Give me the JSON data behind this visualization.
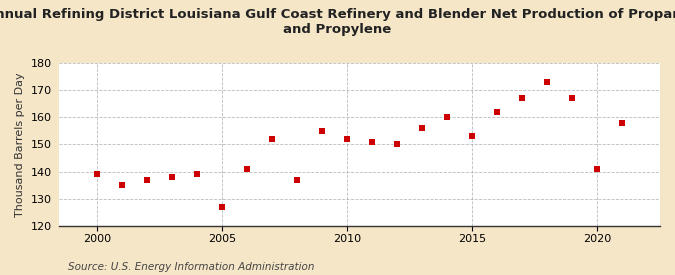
{
  "title": "Annual Refining District Louisiana Gulf Coast Refinery and Blender Net Production of Propane\nand Propylene",
  "ylabel": "Thousand Barrels per Day",
  "source": "Source: U.S. Energy Information Administration",
  "years": [
    2000,
    2001,
    2002,
    2003,
    2004,
    2005,
    2006,
    2007,
    2008,
    2009,
    2010,
    2011,
    2012,
    2013,
    2014,
    2015,
    2016,
    2017,
    2018,
    2019,
    2020,
    2021
  ],
  "values": [
    139,
    135,
    137,
    138,
    139,
    127,
    141,
    152,
    137,
    155,
    152,
    151,
    150,
    156,
    160,
    153,
    162,
    167,
    173,
    167,
    141,
    158
  ],
  "ylim": [
    120,
    180
  ],
  "yticks": [
    120,
    130,
    140,
    150,
    160,
    170,
    180
  ],
  "xticks": [
    2000,
    2005,
    2010,
    2015,
    2020
  ],
  "xlim": [
    1998.5,
    2022.5
  ],
  "marker_color": "#cc0000",
  "marker": "s",
  "marker_size": 5,
  "fig_bg_color": "#f5e6c8",
  "plot_bg_color": "#ffffff",
  "grid_color": "#aaaaaa",
  "title_fontsize": 9.5,
  "label_fontsize": 8,
  "tick_fontsize": 8,
  "source_fontsize": 7.5
}
